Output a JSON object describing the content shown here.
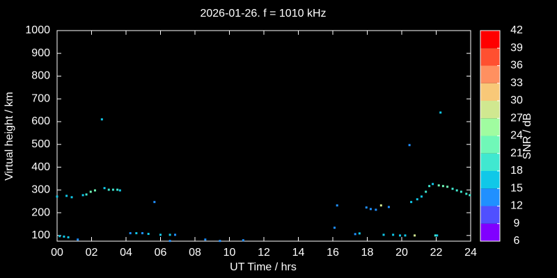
{
  "chart_data": {
    "type": "scatter",
    "title": "2026-01-26. f = 1010 kHz",
    "x_label": "UT Time / hrs",
    "y_label": "Virtual height / km",
    "xlim": [
      0,
      24
    ],
    "xticks": [
      {
        "value": 0,
        "label": "00"
      },
      {
        "value": 2,
        "label": "02"
      },
      {
        "value": 4,
        "label": "04"
      },
      {
        "value": 6,
        "label": "06"
      },
      {
        "value": 8,
        "label": "08"
      },
      {
        "value": 10,
        "label": "10"
      },
      12,
      14,
      16,
      18,
      20,
      22,
      24
    ],
    "ylim": [
      75,
      1000
    ],
    "yticks": [
      100,
      200,
      300,
      400,
      500,
      600,
      700,
      800,
      900,
      1000
    ],
    "colorbar": {
      "label": "SNR / dB",
      "range": [
        6,
        42
      ],
      "ticks": [
        6,
        9,
        12,
        15,
        18,
        21,
        24,
        27,
        30,
        33,
        36,
        39,
        42
      ],
      "colors": [
        "#8000ff",
        "#5050ff",
        "#2090ff",
        "#10c8e8",
        "#40e8d0",
        "#70f8b8",
        "#a0fca0",
        "#d0e890",
        "#f8c878",
        "#ff9060",
        "#ff5030",
        "#ff0000"
      ]
    },
    "series": [
      {
        "x": [
          0.0,
          0.15,
          0.4,
          0.55,
          0.65,
          0.85,
          1.2,
          1.5,
          1.7,
          1.95,
          2.2,
          2.6,
          2.75,
          3.0,
          3.25,
          3.5,
          3.65,
          4.25,
          4.6,
          4.95,
          5.3,
          5.65,
          6.0,
          6.55,
          6.55,
          6.85,
          8.6,
          9.45,
          10.8,
          16.1,
          16.25,
          17.3,
          17.55,
          17.95,
          18.2,
          18.5,
          18.8,
          19.25,
          18.95,
          19.5,
          19.9,
          20.2,
          20.45,
          20.55,
          20.75,
          20.9,
          21.15,
          21.4,
          21.6,
          21.8,
          21.95,
          22.05,
          22.15,
          22.25,
          22.4,
          22.65,
          22.95,
          23.2,
          23.45,
          23.75,
          23.95
        ],
        "y": [
          271,
          97,
          95,
          274,
          92,
          268,
          82,
          277,
          280,
          292,
          298,
          610,
          308,
          301,
          301,
          301,
          298,
          110,
          110,
          110,
          107,
          247,
          103,
          103,
          76,
          103,
          82,
          76,
          79,
          134,
          232,
          106,
          109,
          223,
          216,
          213,
          232,
          225,
          103,
          103,
          100,
          100,
          497,
          247,
          100,
          259,
          271,
          292,
          317,
          326,
          100,
          100,
          320,
          640,
          317,
          314,
          305,
          298,
          292,
          283,
          277
        ],
        "snr": [
          15,
          15,
          15,
          15,
          15,
          15,
          12,
          15,
          18,
          21,
          21,
          15,
          15,
          18,
          18,
          18,
          15,
          12,
          15,
          12,
          15,
          12,
          15,
          15,
          12,
          12,
          12,
          12,
          12,
          12,
          12,
          12,
          15,
          12,
          12,
          12,
          27,
          12,
          15,
          15,
          15,
          15,
          12,
          15,
          27,
          15,
          15,
          18,
          18,
          15,
          18,
          15,
          21,
          15,
          21,
          21,
          18,
          18,
          18,
          18,
          18
        ]
      }
    ]
  }
}
